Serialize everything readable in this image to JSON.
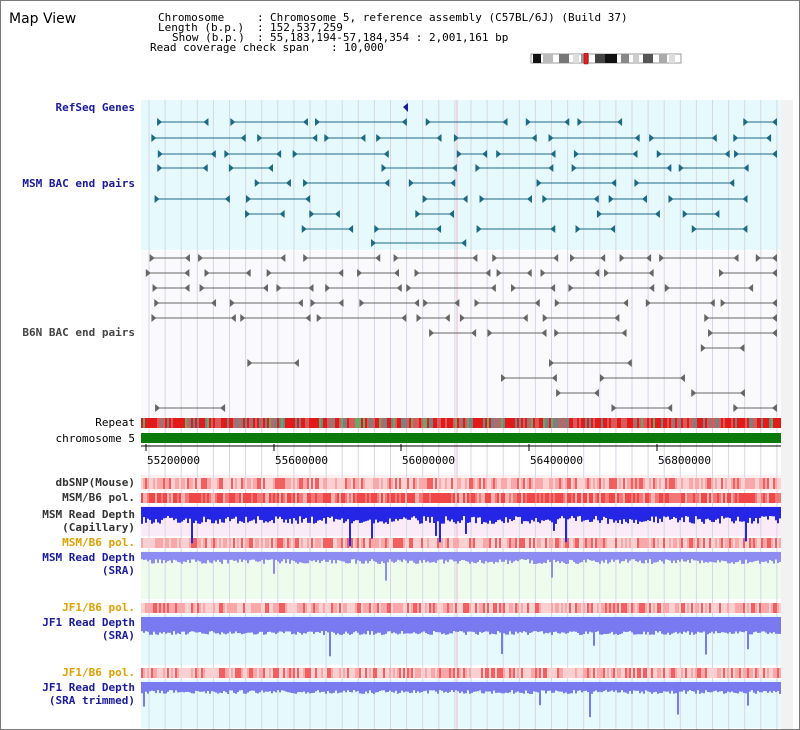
{
  "title": "Map View",
  "info": {
    "chromosome_label": "Chromosome",
    "chromosome_value": "Chromosome 5, reference assembly (C57BL/6J) (Build 37)",
    "length_label": "Length (b.p.)",
    "length_value": "152,537,259",
    "show_label": "Show (b.p.)",
    "show_value": "55,183,194-57,184,354 : 2,001,161 bp",
    "coverage_label": "Read coverage check span",
    "coverage_value": "10,000"
  },
  "tracks": {
    "refseq": "RefSeq Genes",
    "msm_bac": "MSM BAC end pairs",
    "b6n_bac": "B6N BAC end pairs",
    "repeat": "Repeat",
    "chromosome": "chromosome 5",
    "dbsnp": "dbSNP(Mouse)",
    "msm_b6_pol_1": "MSM/B6 pol.",
    "msm_depth_cap_1": "MSM Read Depth",
    "msm_depth_cap_2": "(Capillary)",
    "msm_b6_pol_2": "MSM/B6 pol.",
    "msm_depth_sra_1": "MSM Read Depth",
    "msm_depth_sra_2": "(SRA)",
    "jf1_b6_pol_1": "JF1/B6 pol.",
    "jf1_depth_sra_1": "JF1 Read Depth",
    "jf1_depth_sra_2": "(SRA)",
    "jf1_b6_pol_2": "JF1/B6 pol.",
    "jf1_depth_trim_1": "JF1 Read Depth",
    "jf1_depth_trim_2": "(SRA trimmed)"
  },
  "axis_ticks": [
    "55200000",
    "55600000",
    "56000000",
    "56400000",
    "56800000"
  ],
  "colors": {
    "refseq_bg": "#e6fafd",
    "feature_teal": "#1d6a86",
    "feature_gray": "#666666",
    "chromosome_bar": "#0a7a0a",
    "pol_red": "#f25050",
    "depth_blue": "#2525e6",
    "depth_light": "#8c8cf2"
  }
}
